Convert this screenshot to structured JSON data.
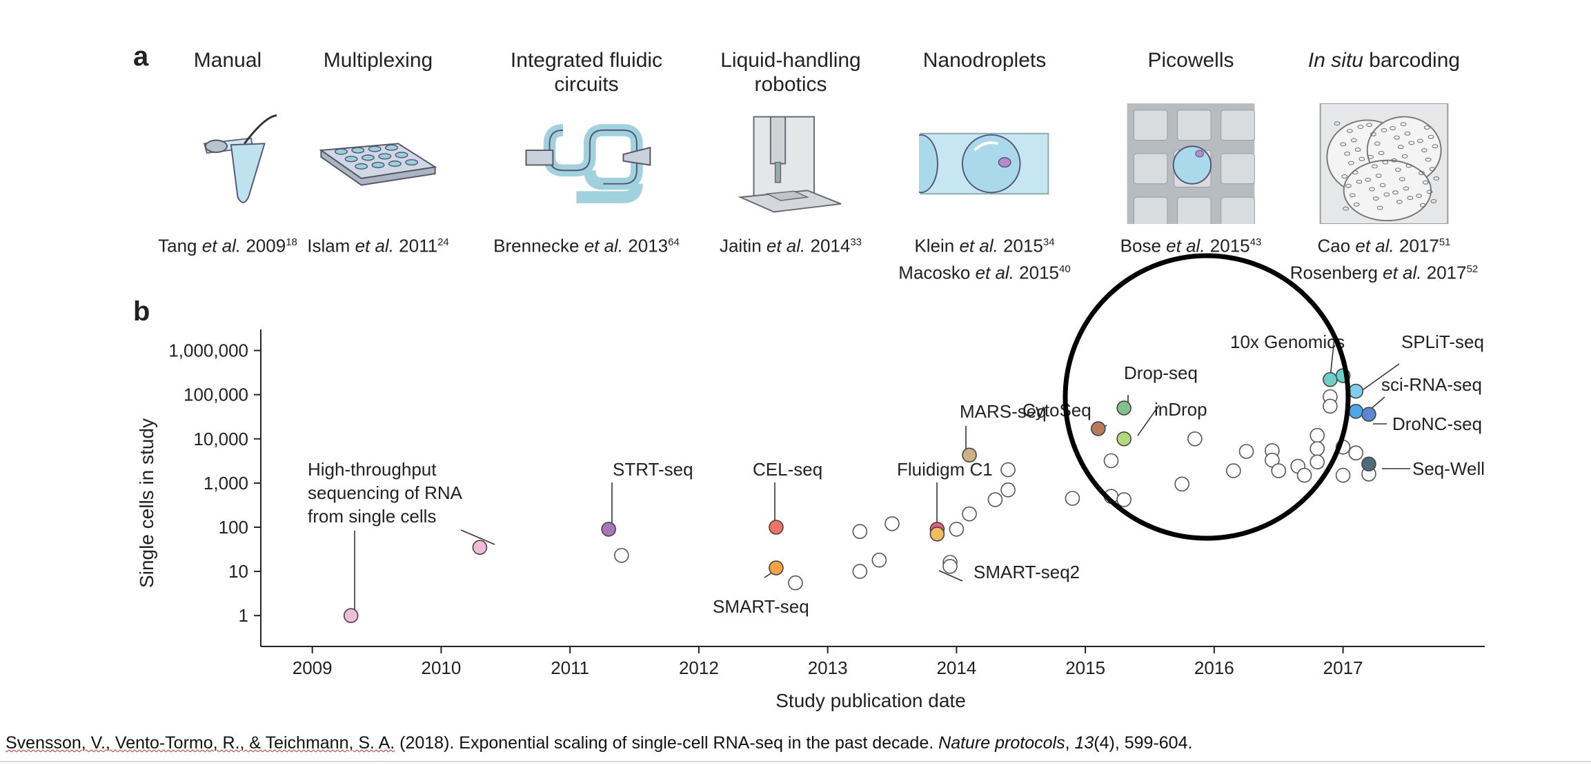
{
  "panel_a": {
    "letter": "a",
    "technologies": [
      {
        "title_lines": [
          "Manual"
        ],
        "cite_lines": [
          {
            "author": "Tang",
            "etal": "et al.",
            "year": "2009",
            "ref": "18"
          }
        ],
        "icon": "tube-pipette-icon"
      },
      {
        "title_lines": [
          "Multiplexing"
        ],
        "cite_lines": [
          {
            "author": "Islam",
            "etal": "et al.",
            "year": "2011",
            "ref": "24"
          }
        ],
        "icon": "multiwell-plate-icon"
      },
      {
        "title_lines": [
          "Integrated fluidic",
          "circuits"
        ],
        "cite_lines": [
          {
            "author": "Brennecke",
            "etal": "et al.",
            "year": "2013",
            "ref": "64"
          }
        ],
        "icon": "fluidic-circuit-icon"
      },
      {
        "title_lines": [
          "Liquid-handling",
          "robotics"
        ],
        "cite_lines": [
          {
            "author": "Jaitin",
            "etal": "et al.",
            "year": "2014",
            "ref": "33"
          }
        ],
        "icon": "robot-arm-icon"
      },
      {
        "title_lines": [
          "Nanodroplets"
        ],
        "cite_lines": [
          {
            "author": "Klein",
            "etal": "et al.",
            "year": "2015",
            "ref": "34"
          },
          {
            "author": "Macosko",
            "etal": "et al.",
            "year": "2015",
            "ref": "40"
          }
        ],
        "icon": "droplet-channel-icon"
      },
      {
        "title_lines": [
          "Picowells"
        ],
        "cite_lines": [
          {
            "author": "Bose",
            "etal": "et al.",
            "year": "2015",
            "ref": "43"
          }
        ],
        "icon": "picowell-icon"
      },
      {
        "title_lines_rich": [
          {
            "italic": "In situ",
            "rest": " barcoding"
          }
        ],
        "cite_lines": [
          {
            "author": "Cao",
            "etal": "et al.",
            "year": "2017",
            "ref": "51"
          },
          {
            "author": "Rosenberg",
            "etal": "et al.",
            "year": "2017",
            "ref": "52"
          }
        ],
        "icon": "in-situ-barcoding-icon"
      }
    ]
  },
  "panel_b": {
    "letter": "b"
  },
  "chart_data": {
    "type": "scatter",
    "xlabel": "Study publication date",
    "ylabel": "Single cells in study",
    "y_scale": "log",
    "xlim": [
      2008.6,
      2018.1
    ],
    "ylim": [
      0.2,
      3000000
    ],
    "x_ticks": [
      2009,
      2010,
      2011,
      2012,
      2013,
      2014,
      2015,
      2016,
      2017
    ],
    "y_ticks": [
      1,
      10,
      100,
      1000,
      10000,
      100000,
      1000000
    ],
    "y_tick_labels": [
      "1",
      "10",
      "100",
      "1,000",
      "10,000",
      "100,000",
      "1,000,000"
    ],
    "labeled_points": [
      {
        "label": [
          "High-throughput",
          "sequencing of RNA",
          "from single cells"
        ],
        "x": 2009.3,
        "y": 1,
        "color": "#f0bcd6"
      },
      {
        "label": [
          "High-throughput",
          "sequencing of RNA",
          "from single cells"
        ],
        "x": 2010.3,
        "y": 35,
        "color": "#f0bcd6"
      },
      {
        "label": [
          "STRT-seq"
        ],
        "x": 2011.3,
        "y": 90,
        "color": "#a877b8"
      },
      {
        "label": [
          "CEL-seq"
        ],
        "x": 2012.6,
        "y": 100,
        "color": "#ee7565"
      },
      {
        "label": [
          "SMART-seq"
        ],
        "x": 2012.6,
        "y": 12,
        "color": "#f6a341"
      },
      {
        "label": [
          "Fluidigm C1"
        ],
        "x": 2013.85,
        "y": 90,
        "color": "#e65b82"
      },
      {
        "label": [
          "SMART-seq2"
        ],
        "x": 2013.85,
        "y": 70,
        "color": "#f2bb5c"
      },
      {
        "label": [
          "MARS-seq"
        ],
        "x": 2014.1,
        "y": 4300,
        "color": "#cfb186"
      },
      {
        "label": [
          "CytoSeq"
        ],
        "x": 2015.1,
        "y": 17000,
        "color": "#b97a59"
      },
      {
        "label": [
          "Drop-seq"
        ],
        "x": 2015.3,
        "y": 50000,
        "color": "#83c08f"
      },
      {
        "label": [
          "inDrop"
        ],
        "x": 2015.3,
        "y": 10000,
        "color": "#b3d97e"
      },
      {
        "label": [
          "10x Genomics"
        ],
        "x": 2016.9,
        "y": 220000,
        "color": "#6dcfc9"
      },
      {
        "label": [
          "10x Genomics"
        ],
        "x": 2017.0,
        "y": 270000,
        "color": "#6dcfc9"
      },
      {
        "label": [
          "SPLiT-seq"
        ],
        "x": 2017.1,
        "y": 120000,
        "color": "#7fcdef"
      },
      {
        "label": [
          "sci-RNA-seq"
        ],
        "x": 2017.1,
        "y": 42000,
        "color": "#4aa8e8"
      },
      {
        "label": [
          "DroNC-seq"
        ],
        "x": 2017.2,
        "y": 36000,
        "color": "#5b86d3"
      },
      {
        "label": [
          "Seq-Well"
        ],
        "x": 2017.2,
        "y": 2700,
        "color": "#4f6c78"
      }
    ],
    "other_points": [
      {
        "x": 2011.4,
        "y": 23
      },
      {
        "x": 2012.75,
        "y": 5.5
      },
      {
        "x": 2013.25,
        "y": 80
      },
      {
        "x": 2013.25,
        "y": 10
      },
      {
        "x": 2013.4,
        "y": 18
      },
      {
        "x": 2013.5,
        "y": 120
      },
      {
        "x": 2013.95,
        "y": 16
      },
      {
        "x": 2013.95,
        "y": 13
      },
      {
        "x": 2014.0,
        "y": 90
      },
      {
        "x": 2014.1,
        "y": 200
      },
      {
        "x": 2014.3,
        "y": 420
      },
      {
        "x": 2014.4,
        "y": 2000
      },
      {
        "x": 2014.4,
        "y": 700
      },
      {
        "x": 2014.9,
        "y": 450
      },
      {
        "x": 2015.2,
        "y": 500
      },
      {
        "x": 2015.2,
        "y": 3200
      },
      {
        "x": 2015.3,
        "y": 420
      },
      {
        "x": 2015.75,
        "y": 950
      },
      {
        "x": 2015.85,
        "y": 10000
      },
      {
        "x": 2016.15,
        "y": 1900
      },
      {
        "x": 2016.25,
        "y": 5200
      },
      {
        "x": 2016.45,
        "y": 5400
      },
      {
        "x": 2016.45,
        "y": 3300
      },
      {
        "x": 2016.5,
        "y": 1900
      },
      {
        "x": 2016.65,
        "y": 2400
      },
      {
        "x": 2016.7,
        "y": 1500
      },
      {
        "x": 2016.8,
        "y": 12000
      },
      {
        "x": 2016.8,
        "y": 6000
      },
      {
        "x": 2016.8,
        "y": 3000
      },
      {
        "x": 2016.9,
        "y": 90000
      },
      {
        "x": 2016.9,
        "y": 55000
      },
      {
        "x": 2017.0,
        "y": 6500
      },
      {
        "x": 2017.0,
        "y": 1500
      },
      {
        "x": 2017.1,
        "y": 4800
      },
      {
        "x": 2017.2,
        "y": 1600
      }
    ],
    "annotation": "black circle highlighting the 2015-2017 high-throughput cluster",
    "grid": false
  },
  "citation": {
    "authors": "Svensson, V., Vento-Tormo, R., & Teichmann, S. A.",
    "year": " (2018). Exponential scaling of single-cell RNA-seq in the past decade. ",
    "journal": "Nature protocols",
    "sep1": ", ",
    "volume": "13",
    "issue_pages": "(4), 599-604."
  }
}
